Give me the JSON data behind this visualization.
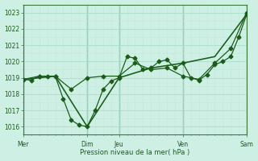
{
  "title": "",
  "xlabel": "Pression niveau de la mer( hPa )",
  "ylabel": "",
  "background_color": "#cef0e4",
  "grid_color_major": "#b0ddd0",
  "grid_color_minor": "#c8eadf",
  "line_color": "#1a5c1a",
  "spine_color": "#3a7a3a",
  "ylim": [
    1015.5,
    1023.5
  ],
  "yticks": [
    1016,
    1017,
    1018,
    1019,
    1020,
    1021,
    1022,
    1023
  ],
  "day_labels": [
    "Mer",
    "Dim",
    "Jeu",
    "Ven",
    "Sam"
  ],
  "day_positions": [
    0,
    96,
    144,
    240,
    336
  ],
  "xlim": [
    0,
    336
  ],
  "series1_x": [
    0,
    12,
    24,
    36,
    48,
    60,
    72,
    84,
    96,
    108,
    120,
    132,
    144,
    156,
    168,
    180,
    192,
    204,
    216,
    228,
    240,
    252,
    264,
    276,
    288,
    300,
    312,
    324,
    336
  ],
  "series1_y": [
    1018.9,
    1018.85,
    1019.1,
    1019.1,
    1019.1,
    1017.7,
    1016.4,
    1016.1,
    1016.0,
    1017.0,
    1018.3,
    1018.8,
    1019.0,
    1020.3,
    1020.2,
    1019.5,
    1019.6,
    1020.0,
    1020.1,
    1019.6,
    1019.9,
    1019.0,
    1018.85,
    1019.2,
    1019.8,
    1020.0,
    1020.3,
    1021.5,
    1022.9
  ],
  "series2_x": [
    0,
    48,
    96,
    144,
    192,
    240,
    288,
    336
  ],
  "series2_y": [
    1018.9,
    1019.1,
    1016.0,
    1019.0,
    1019.6,
    1019.9,
    1020.3,
    1022.9
  ],
  "series3_x": [
    0,
    24,
    48,
    72,
    96,
    120,
    144,
    168,
    192,
    216,
    240,
    264,
    288,
    312,
    336
  ],
  "series3_y": [
    1018.9,
    1019.1,
    1019.1,
    1018.3,
    1019.0,
    1019.1,
    1019.1,
    1019.9,
    1019.5,
    1019.6,
    1019.1,
    1018.9,
    1019.9,
    1020.8,
    1023.0
  ],
  "vline_color": "#2a6a2a",
  "marker_size": 2.5,
  "linewidth": 0.9
}
